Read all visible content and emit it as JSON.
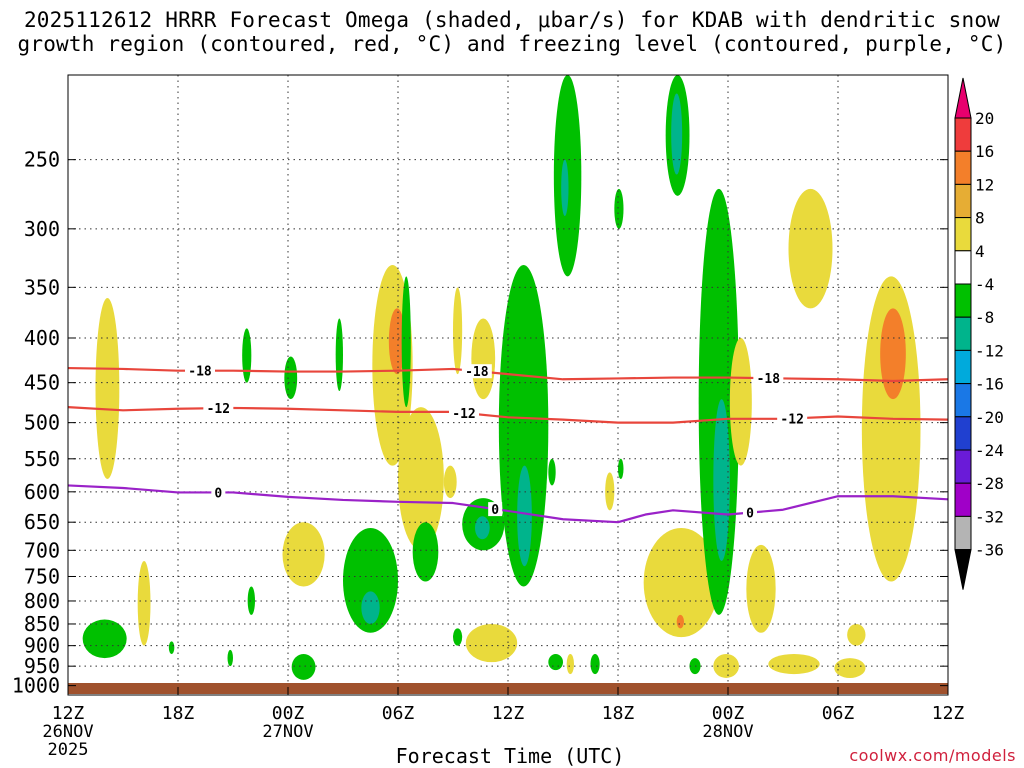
{
  "title_line1": "2025112612 HRRR Forecast Omega (shaded, μbar/s) for KDAB with dendritic snow",
  "title_line2": "growth region (contoured, red, °C) and freezing level (contoured, purple, °C)",
  "xlabel": "Forecast Time (UTC)",
  "credit": "coolwx.com/models",
  "chart_data": {
    "type": "heatmap",
    "x_ticks": [
      {
        "hour": 0,
        "label": "12Z",
        "sub1": "26NOV",
        "sub2": "2025"
      },
      {
        "hour": 6,
        "label": "18Z"
      },
      {
        "hour": 12,
        "label": "00Z",
        "sub1": "27NOV"
      },
      {
        "hour": 18,
        "label": "06Z"
      },
      {
        "hour": 24,
        "label": "12Z"
      },
      {
        "hour": 30,
        "label": "18Z"
      },
      {
        "hour": 36,
        "label": "00Z",
        "sub1": "28NOV"
      },
      {
        "hour": 42,
        "label": "06Z"
      },
      {
        "hour": 48,
        "label": "12Z"
      }
    ],
    "xlim": [
      0,
      48
    ],
    "y_ticks": [
      250,
      300,
      350,
      400,
      450,
      500,
      550,
      600,
      650,
      700,
      750,
      800,
      850,
      900,
      950,
      1000
    ],
    "ylim": [
      1025,
      200
    ],
    "y_scale": "log-pressure",
    "grid": true,
    "colorbar": {
      "labels": [
        20,
        16,
        12,
        8,
        4,
        -4,
        -8,
        -12,
        -16,
        -20,
        -24,
        -28,
        -32,
        -36
      ],
      "colors": [
        "#e8006e",
        "#ef3c3c",
        "#f37f2a",
        "#e6ad34",
        "#e9da3c",
        "#ffffff",
        "#00c000",
        "#00b48c",
        "#00aadc",
        "#1a78e6",
        "#2040d0",
        "#6a1bd8",
        "#a000c8",
        "#b4b4b4",
        "#000000"
      ]
    },
    "contours": [
      {
        "color": "#e8463c",
        "label": "-18",
        "points": [
          [
            0,
            433
          ],
          [
            3,
            434
          ],
          [
            6,
            436
          ],
          [
            9,
            436
          ],
          [
            12,
            437
          ],
          [
            15,
            437
          ],
          [
            18,
            436
          ],
          [
            21,
            434
          ],
          [
            24,
            440
          ],
          [
            27,
            446
          ],
          [
            30,
            445
          ],
          [
            33,
            444
          ],
          [
            36,
            444
          ],
          [
            39,
            445
          ],
          [
            42,
            446
          ],
          [
            45,
            448
          ],
          [
            48,
            446
          ]
        ],
        "label_hours": [
          7.2,
          22.3,
          38.2
        ]
      },
      {
        "color": "#e8463c",
        "label": "-12",
        "points": [
          [
            0,
            480
          ],
          [
            3,
            484
          ],
          [
            6,
            482
          ],
          [
            9,
            481
          ],
          [
            12,
            482
          ],
          [
            15,
            484
          ],
          [
            18,
            486
          ],
          [
            21,
            486
          ],
          [
            24,
            493
          ],
          [
            27,
            496
          ],
          [
            30,
            500
          ],
          [
            33,
            500
          ],
          [
            36,
            495
          ],
          [
            39,
            495
          ],
          [
            42,
            492
          ],
          [
            45,
            495
          ],
          [
            48,
            496
          ]
        ],
        "label_hours": [
          8.2,
          21.6,
          39.5
        ]
      },
      {
        "color": "#9a22c8",
        "label": "0",
        "points": [
          [
            0,
            590
          ],
          [
            3,
            594
          ],
          [
            6,
            601
          ],
          [
            9,
            601
          ],
          [
            12,
            608
          ],
          [
            15,
            613
          ],
          [
            18,
            616
          ],
          [
            21,
            618
          ],
          [
            24,
            631
          ],
          [
            27,
            645
          ],
          [
            30,
            650
          ],
          [
            31.5,
            637
          ],
          [
            33,
            630
          ],
          [
            36,
            637
          ],
          [
            39,
            629
          ],
          [
            42,
            607
          ],
          [
            45,
            607
          ],
          [
            48,
            612
          ]
        ],
        "label_hours": [
          8.2,
          23.3,
          37.2
        ]
      }
    ],
    "shading": [
      {
        "value": 4,
        "t": [
          1.5,
          2.8
        ],
        "p": [
          360,
          580
        ]
      },
      {
        "value": 4,
        "t": [
          3.8,
          4.5
        ],
        "p": [
          720,
          900
        ]
      },
      {
        "value": -8,
        "t": [
          0.8,
          3.2
        ],
        "p": [
          840,
          930
        ]
      },
      {
        "value": -8,
        "t": [
          5.5,
          5.8
        ],
        "p": [
          890,
          920
        ]
      },
      {
        "value": -8,
        "t": [
          9.5,
          10
        ],
        "p": [
          390,
          450
        ]
      },
      {
        "value": -8,
        "t": [
          8.7,
          9
        ],
        "p": [
          910,
          950
        ]
      },
      {
        "value": -8,
        "t": [
          9.8,
          10.2
        ],
        "p": [
          770,
          830
        ]
      },
      {
        "value": -8,
        "t": [
          11.8,
          12.5
        ],
        "p": [
          420,
          470
        ]
      },
      {
        "value": 4,
        "t": [
          11.7,
          14
        ],
        "p": [
          650,
          770
        ]
      },
      {
        "value": -8,
        "t": [
          12.2,
          13.5
        ],
        "p": [
          920,
          985
        ]
      },
      {
        "value": -8,
        "t": [
          14.6,
          15
        ],
        "p": [
          380,
          460
        ]
      },
      {
        "value": 4,
        "t": [
          16.6,
          18.8
        ],
        "p": [
          330,
          560
        ]
      },
      {
        "value": 12,
        "t": [
          17.5,
          18.4
        ],
        "p": [
          370,
          440
        ]
      },
      {
        "value": -8,
        "t": [
          18.2,
          18.7
        ],
        "p": [
          340,
          480
        ]
      },
      {
        "value": -8,
        "t": [
          15,
          18
        ],
        "p": [
          660,
          870
        ]
      },
      {
        "value": -12,
        "t": [
          16,
          17
        ],
        "p": [
          780,
          850
        ]
      },
      {
        "value": 4,
        "t": [
          18,
          20.5
        ],
        "p": [
          480,
          700
        ]
      },
      {
        "value": -8,
        "t": [
          18.8,
          20.2
        ],
        "p": [
          650,
          760
        ]
      },
      {
        "value": 4,
        "t": [
          21,
          21.5
        ],
        "p": [
          350,
          440
        ]
      },
      {
        "value": 4,
        "t": [
          22,
          23.3
        ],
        "p": [
          380,
          470
        ]
      },
      {
        "value": 4,
        "t": [
          20.5,
          21.2
        ],
        "p": [
          560,
          610
        ]
      },
      {
        "value": -8,
        "t": [
          21.5,
          23.8
        ],
        "p": [
          610,
          700
        ]
      },
      {
        "value": -12,
        "t": [
          22.2,
          23
        ],
        "p": [
          640,
          680
        ]
      },
      {
        "value": 4,
        "t": [
          21.7,
          24.5
        ],
        "p": [
          850,
          940
        ]
      },
      {
        "value": -8,
        "t": [
          21,
          21.5
        ],
        "p": [
          860,
          900
        ]
      },
      {
        "value": -8,
        "t": [
          23.5,
          26.2
        ],
        "p": [
          330,
          770
        ]
      },
      {
        "value": -12,
        "t": [
          24.5,
          25.3
        ],
        "p": [
          560,
          730
        ]
      },
      {
        "value": -8,
        "t": [
          26.5,
          28
        ],
        "p": [
          200,
          340
        ]
      },
      {
        "value": -12,
        "t": [
          26.9,
          27.3
        ],
        "p": [
          250,
          290
        ]
      },
      {
        "value": -8,
        "t": [
          26.2,
          26.6
        ],
        "p": [
          550,
          590
        ]
      },
      {
        "value": -8,
        "t": [
          26.2,
          27
        ],
        "p": [
          920,
          960
        ]
      },
      {
        "value": 4,
        "t": [
          27.2,
          27.6
        ],
        "p": [
          920,
          970
        ]
      },
      {
        "value": -8,
        "t": [
          28.5,
          29
        ],
        "p": [
          920,
          970
        ]
      },
      {
        "value": 4,
        "t": [
          29.3,
          29.8
        ],
        "p": [
          570,
          630
        ]
      },
      {
        "value": -8,
        "t": [
          29.8,
          30.3
        ],
        "p": [
          270,
          300
        ]
      },
      {
        "value": -8,
        "t": [
          30,
          30.3
        ],
        "p": [
          550,
          580
        ]
      },
      {
        "value": -8,
        "t": [
          32.6,
          33.9
        ],
        "p": [
          200,
          275
        ]
      },
      {
        "value": -12,
        "t": [
          32.9,
          33.5
        ],
        "p": [
          210,
          260
        ]
      },
      {
        "value": 4,
        "t": [
          31.4,
          35.5
        ],
        "p": [
          660,
          880
        ]
      },
      {
        "value": 12,
        "t": [
          33.2,
          33.6
        ],
        "p": [
          830,
          860
        ]
      },
      {
        "value": -8,
        "t": [
          34.4,
          36.6
        ],
        "p": [
          270,
          830
        ]
      },
      {
        "value": -12,
        "t": [
          35.2,
          36.1
        ],
        "p": [
          470,
          720
        ]
      },
      {
        "value": -8,
        "t": [
          33.9,
          34.5
        ],
        "p": [
          930,
          970
        ]
      },
      {
        "value": 4,
        "t": [
          35.2,
          36.6
        ],
        "p": [
          920,
          980
        ]
      },
      {
        "value": 4,
        "t": [
          36.1,
          37.3
        ],
        "p": [
          400,
          560
        ]
      },
      {
        "value": 4,
        "t": [
          37,
          38.6
        ],
        "p": [
          690,
          870
        ]
      },
      {
        "value": 4,
        "t": [
          39.3,
          41.7
        ],
        "p": [
          270,
          370
        ]
      },
      {
        "value": 4,
        "t": [
          41.8,
          43.5
        ],
        "p": [
          930,
          980
        ]
      },
      {
        "value": 4,
        "t": [
          43.3,
          46.5
        ],
        "p": [
          340,
          760
        ]
      },
      {
        "value": 12,
        "t": [
          44.3,
          45.7
        ],
        "p": [
          370,
          470
        ]
      },
      {
        "value": 4,
        "t": [
          42.5,
          43.5
        ],
        "p": [
          850,
          900
        ]
      },
      {
        "value": 4,
        "t": [
          38.2,
          41
        ],
        "p": [
          920,
          970
        ]
      }
    ]
  }
}
